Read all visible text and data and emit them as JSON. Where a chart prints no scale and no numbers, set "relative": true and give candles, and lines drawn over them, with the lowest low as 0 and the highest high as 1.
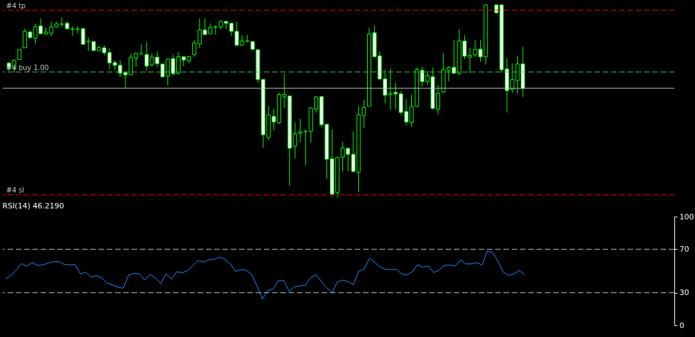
{
  "chart_data": [
    {
      "type": "candlestick",
      "relative": true,
      "color": "#00ff00",
      "categories": [
        null,
        null,
        null,
        null,
        null,
        null,
        null,
        null,
        null,
        null,
        null,
        null,
        null,
        null,
        null,
        null,
        null,
        null,
        null,
        null,
        null,
        null,
        null,
        null,
        null,
        null,
        null,
        null,
        null,
        null,
        null,
        null,
        null,
        null,
        null,
        null,
        null,
        null,
        null,
        null,
        null,
        null,
        null,
        null,
        null,
        null,
        null,
        null,
        null,
        null,
        null,
        null,
        null,
        null,
        null,
        null,
        null,
        null,
        null,
        null,
        null,
        null,
        null,
        null,
        null,
        null,
        null,
        null,
        null,
        null,
        null,
        null,
        null,
        null,
        null,
        null,
        null,
        null,
        null,
        null,
        null,
        null,
        null,
        null,
        null,
        null,
        null,
        null,
        null,
        null,
        null,
        null,
        null,
        null,
        null,
        null,
        null,
        null
      ],
      "ohlc": [
        [
          0.697,
          0.704,
          0.658,
          0.674
        ],
        [
          0.674,
          0.718,
          0.648,
          0.711
        ],
        [
          0.716,
          0.768,
          0.716,
          0.768
        ],
        [
          0.777,
          0.877,
          0.777,
          0.862
        ],
        [
          0.859,
          0.865,
          0.821,
          0.83
        ],
        [
          0.826,
          0.9,
          0.795,
          0.887
        ],
        [
          0.89,
          0.93,
          0.848,
          0.85
        ],
        [
          0.848,
          0.883,
          0.848,
          0.858
        ],
        [
          0.853,
          0.912,
          0.836,
          0.886
        ],
        [
          0.885,
          0.912,
          0.883,
          0.901
        ],
        [
          0.9,
          0.936,
          0.885,
          0.9
        ],
        [
          0.904,
          0.915,
          0.871,
          0.876
        ],
        [
          0.874,
          0.888,
          0.839,
          0.874
        ],
        [
          0.874,
          0.888,
          0.853,
          0.874
        ],
        [
          0.876,
          0.88,
          0.791,
          0.795
        ],
        [
          0.81,
          0.83,
          0.76,
          0.81
        ],
        [
          0.809,
          0.809,
          0.758,
          0.763
        ],
        [
          0.762,
          0.789,
          0.76,
          0.777
        ],
        [
          0.777,
          0.789,
          0.739,
          0.751
        ],
        [
          0.752,
          0.775,
          0.665,
          0.698
        ],
        [
          0.7,
          0.712,
          0.66,
          0.686
        ],
        [
          0.686,
          0.712,
          0.624,
          0.645
        ],
        [
          0.648,
          0.652,
          0.566,
          0.636
        ],
        [
          0.636,
          0.744,
          0.636,
          0.728
        ],
        [
          0.723,
          0.749,
          0.677,
          0.749
        ],
        [
          0.745,
          0.795,
          0.742,
          0.745
        ],
        [
          0.742,
          0.806,
          0.656,
          0.682
        ],
        [
          0.688,
          0.746,
          0.681,
          0.728
        ],
        [
          0.728,
          0.757,
          0.677,
          0.695
        ],
        [
          0.693,
          0.693,
          0.626,
          0.626
        ],
        [
          0.629,
          0.722,
          0.582,
          0.718
        ],
        [
          0.721,
          0.742,
          0.631,
          0.643
        ],
        [
          0.645,
          0.754,
          0.638,
          0.731
        ],
        [
          0.731,
          0.732,
          0.681,
          0.714
        ],
        [
          0.709,
          0.736,
          0.697,
          0.731
        ],
        [
          0.742,
          0.818,
          0.73,
          0.802
        ],
        [
          0.797,
          0.93,
          0.775,
          0.869
        ],
        [
          0.869,
          0.93,
          0.842,
          0.846
        ],
        [
          0.85,
          0.904,
          0.85,
          0.883
        ],
        [
          0.885,
          0.894,
          0.845,
          0.885
        ],
        [
          0.885,
          0.92,
          0.873,
          0.914
        ],
        [
          0.914,
          0.914,
          0.873,
          0.904
        ],
        [
          0.904,
          0.904,
          0.839,
          0.862
        ],
        [
          0.862,
          0.912,
          0.785,
          0.79
        ],
        [
          0.79,
          0.842,
          0.79,
          0.812
        ],
        [
          0.811,
          0.845,
          0.806,
          0.811
        ],
        [
          0.809,
          0.809,
          0.762,
          0.769
        ],
        [
          0.767,
          0.767,
          0.595,
          0.612
        ],
        [
          0.612,
          0.615,
          0.258,
          0.325
        ],
        [
          0.311,
          0.475,
          0.296,
          0.429
        ],
        [
          0.421,
          0.46,
          0.349,
          0.392
        ],
        [
          0.388,
          0.545,
          0.38,
          0.534
        ],
        [
          0.522,
          0.644,
          0.466,
          0.534
        ],
        [
          0.527,
          0.527,
          0.061,
          0.255
        ],
        [
          0.265,
          0.387,
          0.202,
          0.33
        ],
        [
          0.333,
          0.407,
          0.286,
          0.34
        ],
        [
          0.343,
          0.351,
          0.167,
          0.343
        ],
        [
          0.343,
          0.468,
          0.286,
          0.464
        ],
        [
          0.459,
          0.528,
          0.44,
          0.521
        ],
        [
          0.524,
          0.524,
          0.363,
          0.378
        ],
        [
          0.379,
          0.384,
          0.096,
          0.198
        ],
        [
          0.2,
          0.352,
          0.005,
          0.017
        ],
        [
          0.024,
          0.211,
          0,
          0.207
        ],
        [
          0.209,
          0.289,
          0.137,
          0.256
        ],
        [
          0.254,
          0.261,
          0.137,
          0.224
        ],
        [
          0.224,
          0.342,
          0.128,
          0.135
        ],
        [
          0.131,
          0.474,
          0.028,
          0.429
        ],
        [
          0.425,
          0.507,
          0.36,
          0.467
        ],
        [
          0.474,
          0.88,
          0.474,
          0.848
        ],
        [
          0.855,
          0.894,
          0.728,
          0.731
        ],
        [
          0.735,
          0.757,
          0.607,
          0.615
        ],
        [
          0.615,
          0.664,
          0.489,
          0.531
        ],
        [
          0.533,
          0.669,
          0.454,
          0.541
        ],
        [
          0.545,
          0.595,
          0.458,
          0.538
        ],
        [
          0.538,
          0.552,
          0.427,
          0.441
        ],
        [
          0.446,
          0.513,
          0.374,
          0.392
        ],
        [
          0.388,
          0.534,
          0.366,
          0.471
        ],
        [
          0.472,
          0.676,
          0.469,
          0.664
        ],
        [
          0.66,
          0.679,
          0.575,
          0.601
        ],
        [
          0.603,
          0.657,
          0.583,
          0.633
        ],
        [
          0.626,
          0.676,
          0.454,
          0.462
        ],
        [
          0.459,
          0.585,
          0.43,
          0.541
        ],
        [
          0.547,
          0.75,
          0.542,
          0.664
        ],
        [
          0.66,
          0.681,
          0.603,
          0.675
        ],
        [
          0.675,
          0.817,
          0.645,
          0.645
        ],
        [
          0.645,
          0.873,
          0.635,
          0.812
        ],
        [
          0.812,
          0.842,
          0.718,
          0.733
        ],
        [
          0.728,
          0.777,
          0.645,
          0.738
        ],
        [
          0.74,
          0.817,
          0.728,
          0.767
        ],
        [
          0.77,
          0.817,
          0.704,
          0.73
        ],
        [
          0.73,
          1,
          0.691,
          1
        ],
        null,
        [
          1,
          1,
          0.953,
          0.959
        ],
        [
          1,
          1,
          0.648,
          0.663
        ],
        [
          0.667,
          0.724,
          0.44,
          0.554
        ],
        [
          0.561,
          0.697,
          0.542,
          0.612
        ],
        [
          0.607,
          0.736,
          0.539,
          0.693
        ],
        [
          0.693,
          0.782,
          0.521,
          0.566
        ]
      ],
      "ref_lines": [
        {
          "axis": "y",
          "value": 0.972,
          "label": "#4 tp",
          "color": "#ff0000",
          "line_style": "dashed"
        },
        {
          "axis": "y",
          "value": 0.651,
          "label": "#4 buy 1.00",
          "color": "#32cd32",
          "line_style": "dashed"
        },
        {
          "axis": "y",
          "value": 0.567,
          "color": "#c0c0c0",
          "line_style": "solid"
        },
        {
          "axis": "y",
          "value": 0.014,
          "label": "#4 sl",
          "color": "#ff0000",
          "line_style": "dashed"
        }
      ]
    },
    {
      "type": "line",
      "title": "RSI(14) 46.2190",
      "categories": [
        null,
        null,
        null,
        null,
        null,
        null,
        null,
        null,
        null,
        null,
        null,
        null,
        null,
        null,
        null,
        null,
        null,
        null,
        null,
        null,
        null,
        null,
        null,
        null,
        null,
        null,
        null,
        null,
        null,
        null,
        null,
        null,
        null,
        null,
        null,
        null,
        null,
        null,
        null,
        null,
        null,
        null,
        null,
        null,
        null,
        null,
        null,
        null,
        null,
        null,
        null,
        null,
        null,
        null,
        null,
        null,
        null,
        null,
        null,
        null,
        null,
        null,
        null,
        null,
        null,
        null,
        null,
        null,
        null,
        null,
        null,
        null,
        null,
        null,
        null,
        null,
        null,
        null,
        null,
        null,
        null,
        null,
        null,
        null,
        null,
        null,
        null,
        null,
        null,
        null,
        null,
        null,
        null,
        null,
        null,
        null,
        null,
        null
      ],
      "series": [
        {
          "color": "#1e90ff",
          "values": [
            42.8,
            45.7,
            50.9,
            56.8,
            54.5,
            57.8,
            55.1,
            55.6,
            57.3,
            58.5,
            58.5,
            56.0,
            55.6,
            56.0,
            47.4,
            48.8,
            44.2,
            45.7,
            43.7,
            38.6,
            37.3,
            35.1,
            34.1,
            46.2,
            47.8,
            47.4,
            41.6,
            46.8,
            43.7,
            38.2,
            47.6,
            42.3,
            49.3,
            48.3,
            50.2,
            54.8,
            59.7,
            58.2,
            60.3,
            60.8,
            62.7,
            60.8,
            56.5,
            49.6,
            51.4,
            50.5,
            47.1,
            36.0,
            24.4,
            32.2,
            33.4,
            41.1,
            41.1,
            31.2,
            35.6,
            36.3,
            36.8,
            43.7,
            46.8,
            40.3,
            34.6,
            30.0,
            39.9,
            41.6,
            40.3,
            37.5,
            50.0,
            51.7,
            61.9,
            57.8,
            53.7,
            51.4,
            51.4,
            51.4,
            47.4,
            46.2,
            49.3,
            56.0,
            53.4,
            54.5,
            48.5,
            50.9,
            55.1,
            55.6,
            54.5,
            60.3,
            56.5,
            56.5,
            57.7,
            55.6,
            68.3,
            66.8,
            59.1,
            48.8,
            45.9,
            47.4,
            50.5,
            46.2
          ]
        }
      ],
      "ylim": [
        0,
        100
      ],
      "yticks": [
        0,
        30,
        70,
        100
      ],
      "ref_lines": [
        {
          "axis": "y",
          "value": 70,
          "color": "#c0c0c0",
          "line_style": "dashed"
        },
        {
          "axis": "y",
          "value": 30,
          "color": "#c0c0c0",
          "line_style": "dashed"
        }
      ]
    }
  ]
}
